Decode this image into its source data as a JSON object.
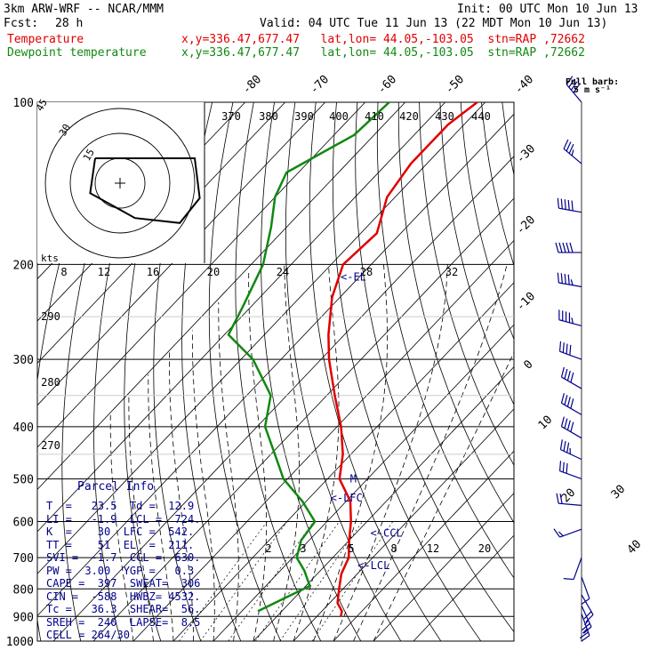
{
  "header": {
    "model": "3km ARW-WRF -- NCAR/MMM",
    "init": "Init: 00 UTC Mon 10 Jun 13",
    "fcst_label": "Fcst:",
    "fcst_value": "28 h",
    "valid": "Valid: 04 UTC Tue 11 Jun 13 (22 MDT Mon 10 Jun 13)",
    "temp_name": "Temperature",
    "temp_info": "x,y=336.47,677.47   lat,lon= 44.05,-103.05  stn=RAP ,72662",
    "dew_name": "Dewpoint temperature",
    "dew_info": "x,y=336.47,677.47   lat,lon= 44.05,-103.05  stn=RAP ,72662",
    "barb_title": "Full barb:",
    "barb_unit": "5 m s⁻¹"
  },
  "colors": {
    "temperature": "#e00000",
    "dewpoint": "#118811",
    "hodograph": "#000000",
    "annot": "#00008b",
    "wind": "#00008b"
  },
  "chart_data": {
    "type": "skew-t",
    "pressure_levels": [
      "100",
      "200",
      "300",
      "400",
      "500",
      "600",
      "700",
      "800",
      "900",
      "1000"
    ],
    "isotherm_labels": [
      "-80",
      "-70",
      "-60",
      "-50",
      "-40",
      "-30",
      "-20",
      "-10",
      "0",
      "10",
      "20",
      "30",
      "40"
    ],
    "theta_labels": [
      "370",
      "380",
      "390",
      "400",
      "410",
      "420",
      "430",
      "440"
    ],
    "theta_left_labels": [
      "290",
      "280",
      "270"
    ],
    "mixing_ratio_labels": [
      "2",
      "3",
      "5",
      "8",
      "12",
      "20"
    ],
    "hodo_speed_labels": [
      "15",
      "30",
      "45"
    ],
    "hodo_kts_label": "kts",
    "hodo_axis_labels": [
      "8",
      "12",
      "16",
      "20",
      "24",
      "28",
      "32"
    ],
    "annotations": {
      "lcl": "<-LCL",
      "lfc": "<-LFC",
      "ccl": "<-CCL",
      "el": "<-EL",
      "m": "M"
    },
    "temperature": [
      [
        100,
        -62
      ],
      [
        110,
        -64
      ],
      [
        130,
        -64
      ],
      [
        150,
        -62
      ],
      [
        175,
        -56
      ],
      [
        200,
        -57
      ],
      [
        230,
        -52
      ],
      [
        270,
        -44
      ],
      [
        300,
        -38
      ],
      [
        350,
        -28
      ],
      [
        400,
        -19
      ],
      [
        450,
        -12
      ],
      [
        500,
        -7
      ],
      [
        550,
        1
      ],
      [
        600,
        6
      ],
      [
        650,
        10
      ],
      [
        700,
        14
      ],
      [
        750,
        16
      ],
      [
        800,
        19
      ],
      [
        850,
        22
      ],
      [
        880,
        25
      ],
      [
        900,
        26
      ]
    ],
    "dewpoint": [
      [
        100,
        -84
      ],
      [
        115,
        -85
      ],
      [
        135,
        -93
      ],
      [
        150,
        -90
      ],
      [
        170,
        -84
      ],
      [
        200,
        -77
      ],
      [
        240,
        -72
      ],
      [
        270,
        -69
      ],
      [
        300,
        -57
      ],
      [
        350,
        -44
      ],
      [
        400,
        -38
      ],
      [
        450,
        -29
      ],
      [
        500,
        -21
      ],
      [
        550,
        -11
      ],
      [
        600,
        -3
      ],
      [
        650,
        -2
      ],
      [
        700,
        1
      ],
      [
        740,
        6
      ],
      [
        790,
        11
      ],
      [
        840,
        7
      ],
      [
        880,
        4
      ]
    ],
    "hodograph": [
      [
        -5,
        5
      ],
      [
        0,
        5
      ],
      [
        15,
        5
      ],
      [
        16,
        -3
      ],
      [
        12,
        -8
      ],
      [
        3,
        -7
      ],
      [
        -6,
        -2
      ],
      [
        -5,
        5
      ]
    ],
    "winds": [
      [
        100,
        320,
        40
      ],
      [
        130,
        310,
        35
      ],
      [
        160,
        280,
        50
      ],
      [
        190,
        270,
        50
      ],
      [
        220,
        280,
        45
      ],
      [
        260,
        285,
        45
      ],
      [
        300,
        290,
        42
      ],
      [
        340,
        300,
        40
      ],
      [
        380,
        300,
        42
      ],
      [
        420,
        300,
        40
      ],
      [
        460,
        295,
        36
      ],
      [
        500,
        290,
        30
      ],
      [
        560,
        275,
        22
      ],
      [
        620,
        250,
        16
      ],
      [
        700,
        200,
        12
      ],
      [
        760,
        160,
        14
      ],
      [
        820,
        150,
        22
      ],
      [
        860,
        155,
        26
      ],
      [
        890,
        160,
        28
      ]
    ],
    "parcel_info": {
      "title": "Parcel Info",
      "lines": [
        "T  =   23.5  Td =  12.9",
        "LI =   -1.9  LCL =  724.",
        "K  =    30  LFC =  542.",
        "TT =    51  EL  =  211.",
        "SVI =  -1.7  CCL =  630.",
        "PW =  3.00  YGP =   0.3",
        "CAPE =  397  SWEAT=  306",
        "CIN =  -588  HWBZ= 4532.",
        "Tc =   36.3  SHEAR=  56.",
        "SREH =  240  LAPSE=  8.5",
        "CELL = 264/30"
      ]
    }
  }
}
